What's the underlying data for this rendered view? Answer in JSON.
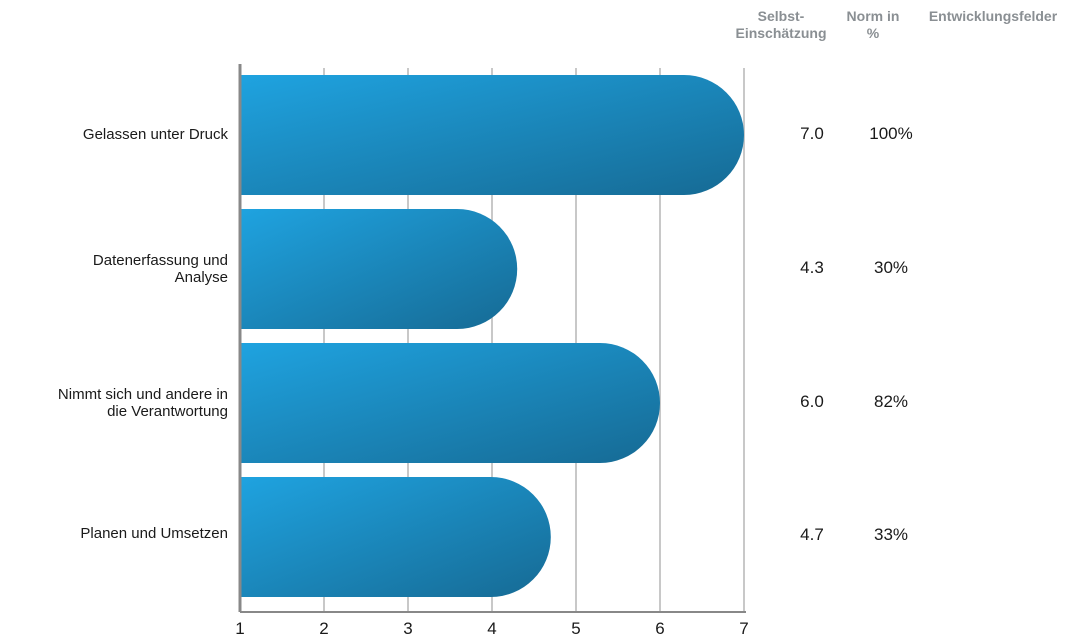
{
  "headers": {
    "self_assessment": "Selbst-\nEinschätzung",
    "norm": "Norm in\n%",
    "development": "Entwicklungsfelder"
  },
  "chart_data": {
    "type": "bar",
    "orientation": "horizontal",
    "categories": [
      "Gelassen unter Druck",
      "Datenerfassung und\nAnalyse",
      "Nimmt sich und andere in\ndie Verantwortung",
      "Planen und Umsetzen"
    ],
    "values": [
      7.0,
      4.3,
      6.0,
      4.7
    ],
    "xlim": [
      1,
      7
    ],
    "xticks": [
      "1",
      "2",
      "3",
      "4",
      "5",
      "6",
      "7"
    ],
    "grid": true,
    "colors": {
      "bar_start": "#1fa3e0",
      "bar_end": "#166a94",
      "grid": "#c8c8c8",
      "axis": "#888888"
    }
  },
  "rows": [
    {
      "self": "7.0",
      "norm": "100%"
    },
    {
      "self": "4.3",
      "norm": "30%"
    },
    {
      "self": "6.0",
      "norm": "82%"
    },
    {
      "self": "4.7",
      "norm": "33%"
    }
  ]
}
